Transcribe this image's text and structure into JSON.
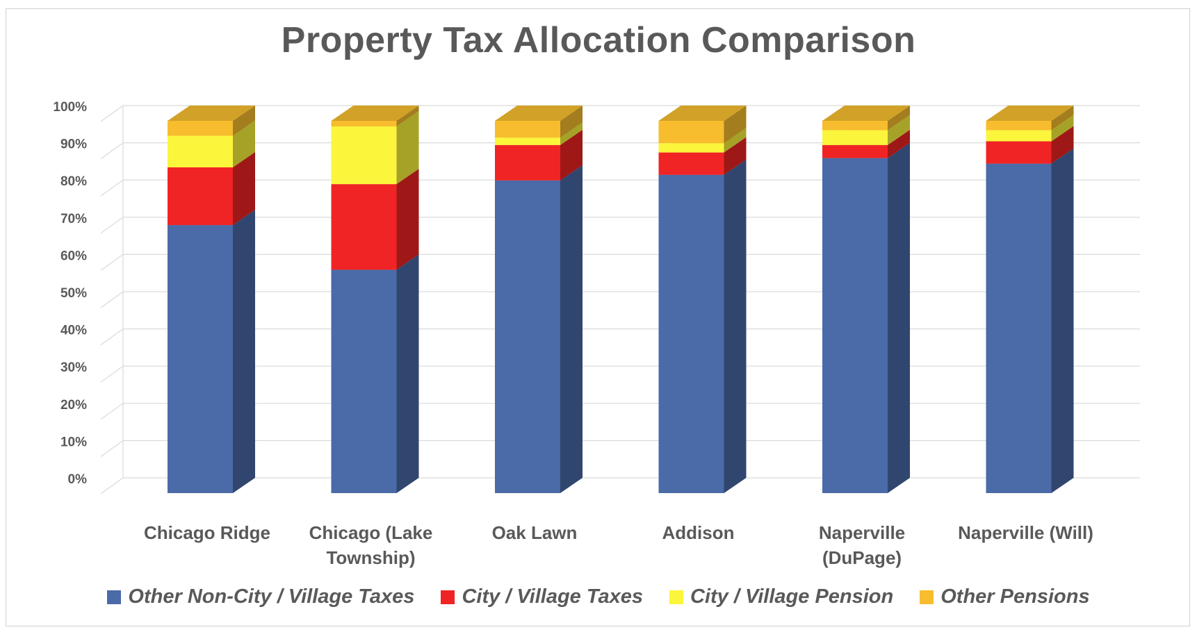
{
  "chart_data": {
    "type": "bar",
    "stacked": true,
    "style": "3d-stacked-percent",
    "title": "Property Tax Allocation Comparison",
    "xlabel": "",
    "ylabel": "",
    "ylim": [
      0,
      100
    ],
    "y_ticks": [
      "0%",
      "10%",
      "20%",
      "30%",
      "40%",
      "50%",
      "60%",
      "70%",
      "80%",
      "90%",
      "100%"
    ],
    "grid": true,
    "legend_position": "bottom",
    "categories": [
      [
        "Chicago Ridge"
      ],
      [
        "Chicago (Lake",
        "Township)"
      ],
      [
        "Oak Lawn"
      ],
      [
        "Addison"
      ],
      [
        "Naperville",
        "(DuPage)"
      ],
      [
        "Naperville (Will)"
      ]
    ],
    "series": [
      {
        "name": "Other Non-City / Village Taxes",
        "color": "#4a6aa8",
        "values": [
          72,
          60,
          84,
          85.5,
          90,
          88.5
        ]
      },
      {
        "name": "City / Village Taxes",
        "color": "#f02424",
        "values": [
          15.5,
          23,
          9.5,
          6,
          3.5,
          6
        ]
      },
      {
        "name": "City / Village Pension",
        "color": "#fbf53c",
        "values": [
          8.5,
          15.5,
          2,
          2.5,
          4,
          3
        ]
      },
      {
        "name": "Other Pensions",
        "color": "#f7bd2e",
        "values": [
          4,
          1.5,
          4.5,
          6,
          2.5,
          2.5
        ]
      }
    ]
  }
}
